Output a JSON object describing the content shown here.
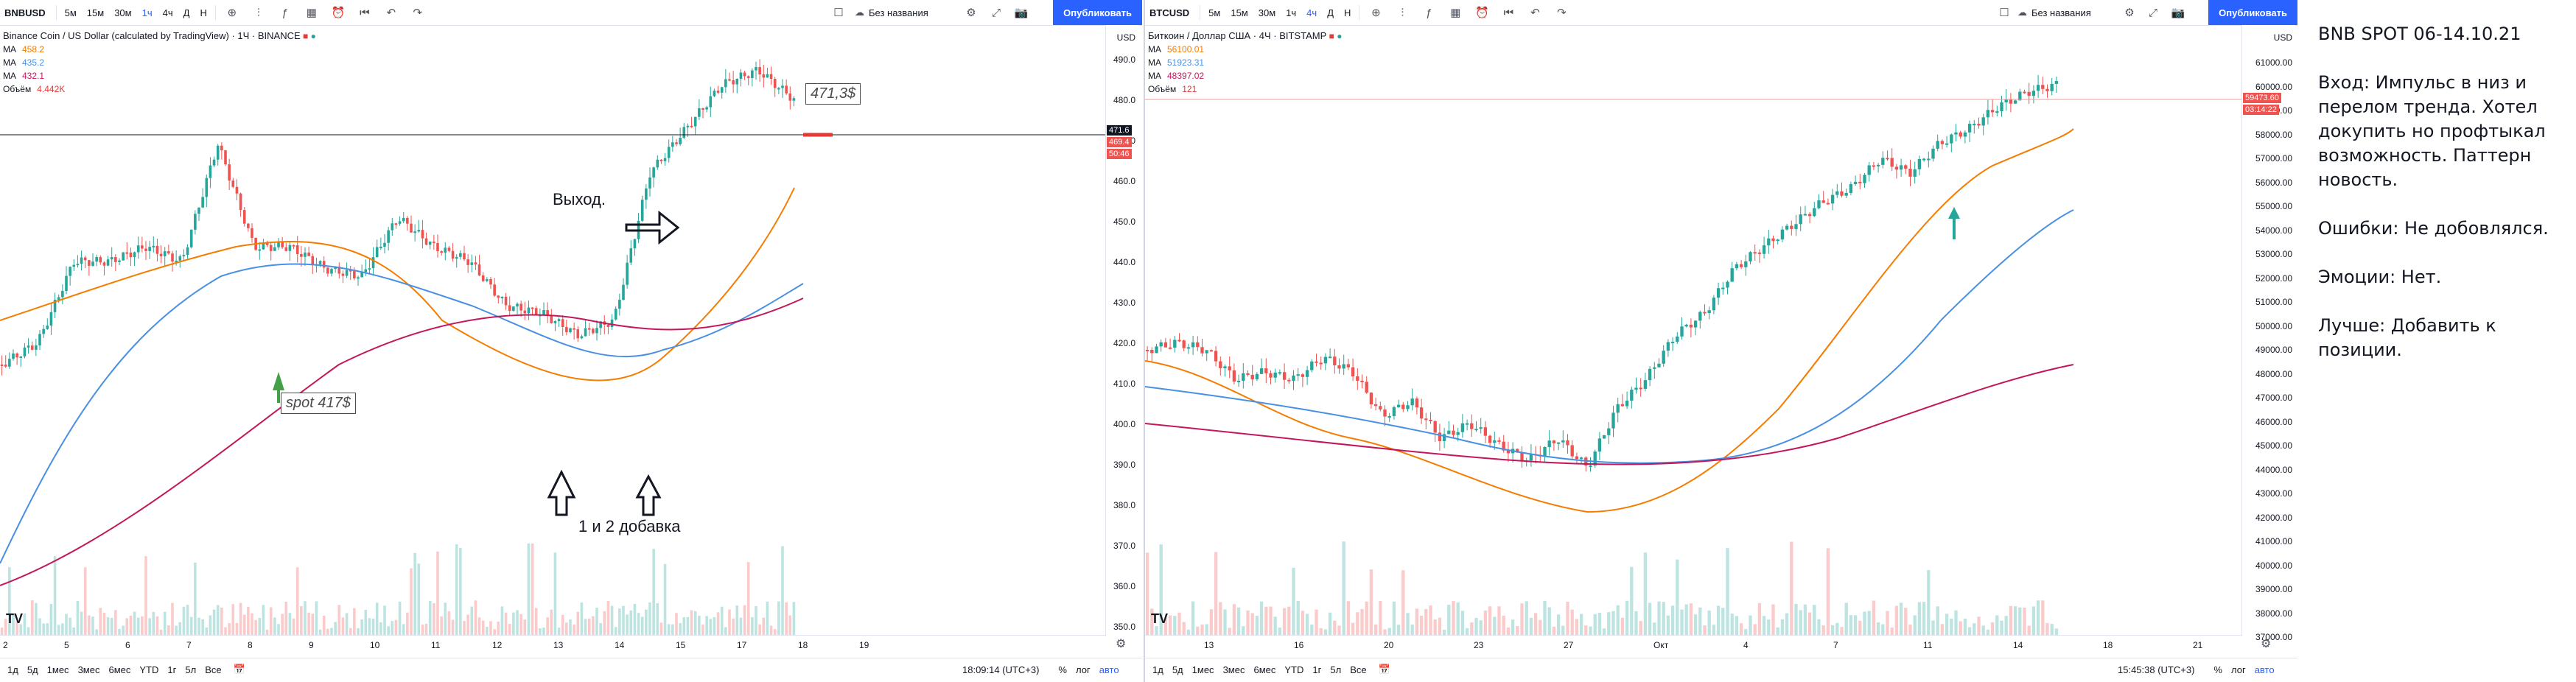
{
  "left_chart": {
    "symbol": "BNBUSD",
    "intervals": [
      "5м",
      "15м",
      "30м",
      "1ч",
      "4ч",
      "Д",
      "Н"
    ],
    "active_interval": "1ч",
    "layout_name": "Без названия",
    "publish_label": "Опубликовать",
    "legend_title": "Binance Coin / US Dollar (calculated by TradingView) · 1Ч · BINANCE",
    "ma1_label": "MA",
    "ma1_value": "458.2",
    "ma2_label": "MA",
    "ma2_value": "435.2",
    "ma3_label": "MA",
    "ma3_value": "432.1",
    "vol_label": "Объём",
    "vol_value": "4.442K",
    "currency": "USD",
    "price_ticks": [
      "490.0",
      "480.0",
      "470.0",
      "460.0",
      "450.0",
      "440.0",
      "430.0",
      "420.0",
      "410.0",
      "400.0",
      "390.0",
      "380.0",
      "370.0",
      "360.0",
      "350.0"
    ],
    "price_tag_last": "471.6",
    "price_tag_current": "469.4",
    "price_tag_timer": "50:46",
    "time_ticks": [
      "2",
      "5",
      "6",
      "7",
      "8",
      "9",
      "10",
      "11",
      "12",
      "13",
      "14",
      "15",
      "17",
      "18",
      "19"
    ],
    "annotation_exit": "Выход.",
    "annotation_add": "1 и 2 добавка",
    "callout_spot": "spot 417$",
    "callout_target": "471,3$",
    "ranges": [
      "1д",
      "5д",
      "1мес",
      "3мес",
      "6мес",
      "YTD",
      "1г",
      "5л",
      "Все"
    ],
    "clock": "18:09:14 (UTC+3)",
    "percent": "%",
    "log": "лог",
    "auto": "авто",
    "tv_logo": "TV"
  },
  "right_chart": {
    "symbol": "BTCUSD",
    "intervals": [
      "5м",
      "15м",
      "30м",
      "1ч",
      "4ч",
      "Д",
      "Н"
    ],
    "active_interval": "4ч",
    "layout_name": "Без названия",
    "publish_label": "Опубликовать",
    "legend_title": "Биткоин / Доллар США · 4Ч · BITSTAMP",
    "ma1_label": "MA",
    "ma1_value": "56100.01",
    "ma2_label": "MA",
    "ma2_value": "51923.31",
    "ma3_label": "MA",
    "ma3_value": "48397.02",
    "vol_label": "Объём",
    "vol_value": "121",
    "currency": "USD",
    "price_ticks": [
      "61000.00",
      "60000.00",
      "59000.00",
      "58000.00",
      "57000.00",
      "56000.00",
      "55000.00",
      "54000.00",
      "53000.00",
      "52000.00",
      "51000.00",
      "50000.00",
      "49000.00",
      "48000.00",
      "47000.00",
      "46000.00",
      "45000.00",
      "44000.00",
      "43000.00",
      "42000.00",
      "41000.00",
      "40000.00",
      "39000.00",
      "38000.00",
      "37000.00"
    ],
    "price_tag_last": "59473.60",
    "price_tag_timer": "03:14:22",
    "time_ticks": [
      "13",
      "16",
      "20",
      "23",
      "27",
      "Окт",
      "4",
      "7",
      "11",
      "14",
      "18",
      "21"
    ],
    "ranges": [
      "1д",
      "5д",
      "1мес",
      "3мес",
      "6мес",
      "YTD",
      "1г",
      "5л",
      "Все"
    ],
    "clock": "15:45:38 (UTC+3)",
    "percent": "%",
    "log": "лог",
    "auto": "авто",
    "tv_logo": "TV"
  },
  "notes": {
    "title": "BNB SPOT 06-14.10.21",
    "entry": "Вход: Импульс в низ и перелом тренда. Хотел докупить но профтыкал возможность. Паттерн новость.",
    "errors": "Ошибки: Не добовлялся.",
    "emotions": "Эмоции: Нет.",
    "better": "Лучше: Добавить к позиции."
  },
  "colors": {
    "up": "#26a69a",
    "down": "#ef5350",
    "ma_fast": "#f57c00",
    "ma_mid": "#4a90e2",
    "ma_slow": "#c2185b",
    "accent": "#2962ff"
  }
}
